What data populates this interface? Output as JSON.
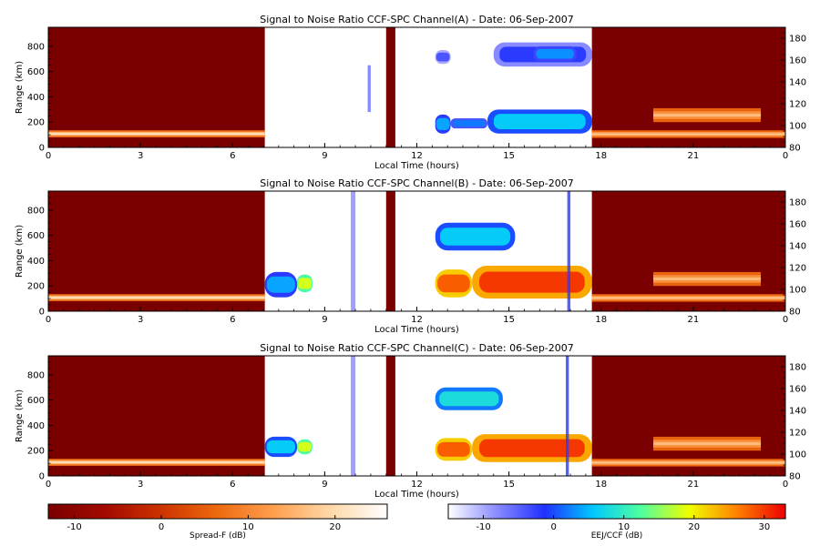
{
  "chart_data": [
    {
      "type": "heatmap",
      "title": "Signal to Noise Ratio CCF-SPC Channel(A) - Date: 06-Sep-2007",
      "xlabel": "Local Time (hours)",
      "ylabel": "Range (km)",
      "xlim": [
        0,
        24
      ],
      "xtick_labels": [
        "0",
        "3",
        "6",
        "9",
        "12",
        "15",
        "18",
        "21",
        "0"
      ],
      "ylim": [
        0,
        950
      ],
      "y_ticks": [
        0,
        200,
        400,
        600,
        800
      ],
      "right_ylim": [
        80,
        190
      ],
      "right_y_ticks": [
        80,
        100,
        120,
        140,
        160,
        180
      ],
      "spread_f_panels": [
        [
          0,
          7.05
        ],
        [
          11.0,
          11.3
        ],
        [
          17.7,
          24
        ]
      ],
      "eej_ccf_window": [
        7.05,
        17.7
      ],
      "features": [
        {
          "kind": "spreadf",
          "t0": 0,
          "t1": 7.05,
          "h0": 80,
          "h1": 135,
          "peak_db": 22
        },
        {
          "kind": "spreadf",
          "t0": 17.7,
          "t1": 24,
          "h0": 75,
          "h1": 135,
          "peak_db": 18
        },
        {
          "kind": "spreadf",
          "t0": 19.7,
          "t1": 23.2,
          "h0": 200,
          "h1": 310,
          "peak_db": 16
        },
        {
          "kind": "eej",
          "t0": 12.6,
          "t1": 13.1,
          "h0": 110,
          "h1": 260,
          "db": 4
        },
        {
          "kind": "eej",
          "t0": 13.1,
          "t1": 14.3,
          "h0": 150,
          "h1": 230,
          "db": 2
        },
        {
          "kind": "eej",
          "t0": 14.3,
          "t1": 17.7,
          "h0": 110,
          "h1": 300,
          "db": 6
        },
        {
          "kind": "eej",
          "t0": 12.6,
          "t1": 13.1,
          "h0": 660,
          "h1": 770,
          "db": -4
        },
        {
          "kind": "eej",
          "t0": 14.5,
          "t1": 17.7,
          "h0": 640,
          "h1": 830,
          "db": -2
        },
        {
          "kind": "eej",
          "t0": 15.8,
          "t1": 17.2,
          "h0": 680,
          "h1": 800,
          "db": 3
        },
        {
          "kind": "streak",
          "t0": 10.4,
          "t1": 10.5,
          "h0": 280,
          "h1": 650,
          "db": -6
        }
      ]
    },
    {
      "type": "heatmap",
      "title": "Signal to Noise Ratio CCF-SPC Channel(B) - Date: 06-Sep-2007",
      "xlabel": "Local Time (hours)",
      "ylabel": "Range (km)",
      "xlim": [
        0,
        24
      ],
      "xtick_labels": [
        "0",
        "3",
        "6",
        "9",
        "12",
        "15",
        "18",
        "21",
        "0"
      ],
      "ylim": [
        0,
        950
      ],
      "y_ticks": [
        0,
        200,
        400,
        600,
        800
      ],
      "right_ylim": [
        80,
        190
      ],
      "right_y_ticks": [
        80,
        100,
        120,
        140,
        160,
        180
      ],
      "spread_f_panels": [
        [
          0,
          7.05
        ],
        [
          11.0,
          11.3
        ],
        [
          17.7,
          24
        ]
      ],
      "eej_ccf_window": [
        7.05,
        17.7
      ],
      "features": [
        {
          "kind": "spreadf",
          "t0": 0,
          "t1": 7.05,
          "h0": 80,
          "h1": 135,
          "peak_db": 22
        },
        {
          "kind": "spreadf",
          "t0": 17.7,
          "t1": 24,
          "h0": 75,
          "h1": 135,
          "peak_db": 18
        },
        {
          "kind": "spreadf",
          "t0": 19.7,
          "t1": 23.2,
          "h0": 200,
          "h1": 310,
          "peak_db": 16
        },
        {
          "kind": "eej",
          "t0": 7.05,
          "t1": 8.1,
          "h0": 110,
          "h1": 310,
          "db": 4
        },
        {
          "kind": "eej",
          "t0": 8.1,
          "t1": 8.6,
          "h0": 150,
          "h1": 290,
          "db": 18
        },
        {
          "kind": "eej",
          "t0": 12.6,
          "t1": 13.8,
          "h0": 110,
          "h1": 330,
          "db": 28
        },
        {
          "kind": "eej",
          "t0": 13.8,
          "t1": 17.7,
          "h0": 100,
          "h1": 360,
          "db": 30
        },
        {
          "kind": "eej",
          "t0": 12.6,
          "t1": 15.2,
          "h0": 480,
          "h1": 700,
          "db": 6
        },
        {
          "kind": "streak",
          "t0": 9.85,
          "t1": 10.0,
          "h0": 0,
          "h1": 950,
          "db": -8
        },
        {
          "kind": "streak",
          "t0": 16.9,
          "t1": 17.0,
          "h0": 0,
          "h1": 950,
          "db": -2
        }
      ]
    },
    {
      "type": "heatmap",
      "title": "Signal to Noise Ratio CCF-SPC Channel(C) - Date: 06-Sep-2007",
      "xlabel": "Local Time (hours)",
      "ylabel": "Range (km)",
      "xlim": [
        0,
        24
      ],
      "xtick_labels": [
        "0",
        "3",
        "6",
        "9",
        "12",
        "15",
        "18",
        "21",
        "0"
      ],
      "ylim": [
        0,
        950
      ],
      "y_ticks": [
        0,
        200,
        400,
        600,
        800
      ],
      "right_ylim": [
        80,
        190
      ],
      "right_y_ticks": [
        80,
        100,
        120,
        140,
        160,
        180
      ],
      "spread_f_panels": [
        [
          0,
          7.05
        ],
        [
          11.0,
          11.3
        ],
        [
          17.7,
          24
        ]
      ],
      "eej_ccf_window": [
        7.05,
        17.7
      ],
      "features": [
        {
          "kind": "spreadf",
          "t0": 0,
          "t1": 7.05,
          "h0": 80,
          "h1": 135,
          "peak_db": 22
        },
        {
          "kind": "spreadf",
          "t0": 17.7,
          "t1": 24,
          "h0": 75,
          "h1": 135,
          "peak_db": 18
        },
        {
          "kind": "spreadf",
          "t0": 19.7,
          "t1": 23.2,
          "h0": 200,
          "h1": 310,
          "peak_db": 16
        },
        {
          "kind": "eej",
          "t0": 7.05,
          "t1": 8.1,
          "h0": 150,
          "h1": 310,
          "db": 6
        },
        {
          "kind": "eej",
          "t0": 8.1,
          "t1": 8.6,
          "h0": 170,
          "h1": 290,
          "db": 18
        },
        {
          "kind": "eej",
          "t0": 12.6,
          "t1": 13.8,
          "h0": 120,
          "h1": 300,
          "db": 28
        },
        {
          "kind": "eej",
          "t0": 13.8,
          "t1": 17.7,
          "h0": 110,
          "h1": 330,
          "db": 30
        },
        {
          "kind": "eej",
          "t0": 12.6,
          "t1": 14.8,
          "h0": 520,
          "h1": 700,
          "db": 8
        },
        {
          "kind": "streak",
          "t0": 9.85,
          "t1": 10.0,
          "h0": 0,
          "h1": 950,
          "db": -8
        },
        {
          "kind": "streak",
          "t0": 16.85,
          "t1": 16.95,
          "h0": 0,
          "h1": 950,
          "db": -2
        }
      ]
    }
  ],
  "colorbars": [
    {
      "label": "Spread-F (dB)",
      "range": [
        -13,
        26
      ],
      "ticks": [
        -10,
        0,
        10,
        20
      ],
      "colors": [
        "#7a0000",
        "#a30a00",
        "#cc3300",
        "#ee6a10",
        "#ffa050",
        "#ffd8a8",
        "#ffffff"
      ]
    },
    {
      "label": "EEJ/CCF (dB)",
      "range": [
        -15,
        33
      ],
      "ticks": [
        -10,
        0,
        10,
        20,
        30
      ],
      "colors": [
        "#ffffff",
        "#8a8cff",
        "#2030ff",
        "#00c8ff",
        "#50ffa0",
        "#f0ff00",
        "#ff8000",
        "#ee0000"
      ]
    }
  ]
}
